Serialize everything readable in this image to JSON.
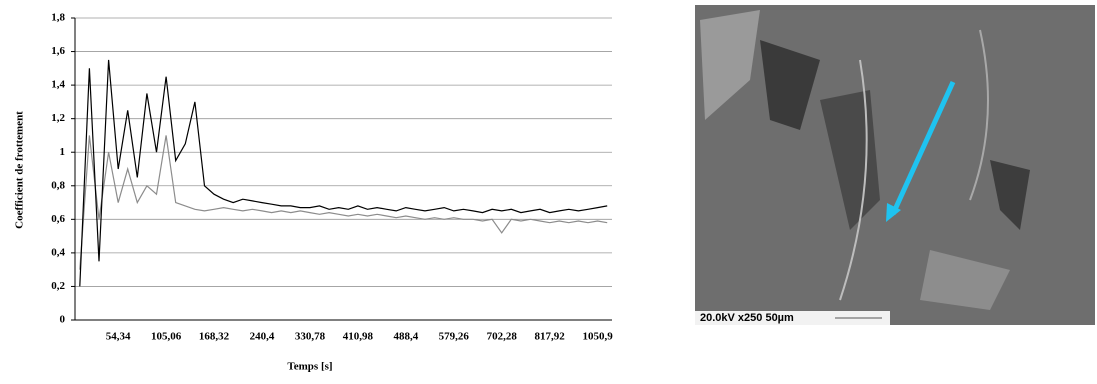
{
  "chart_data": {
    "type": "line",
    "y_label": "Coefficient de frottement",
    "x_label": "Temps [s]",
    "categories": [
      null,
      null,
      null,
      null,
      "54,34",
      null,
      null,
      null,
      null,
      "105,06",
      null,
      null,
      null,
      null,
      "168,32",
      null,
      null,
      null,
      null,
      "240,4",
      null,
      null,
      null,
      null,
      "330,78",
      null,
      null,
      null,
      null,
      "410,98",
      null,
      null,
      null,
      null,
      "488,4",
      null,
      null,
      null,
      null,
      "579,26",
      null,
      null,
      null,
      null,
      "702,28",
      null,
      null,
      null,
      null,
      "817,92",
      null,
      null,
      null,
      null,
      "1050,9",
      null
    ],
    "series": [
      {
        "color": "#000000",
        "values": [
          0.2,
          1.5,
          0.35,
          1.55,
          0.9,
          1.25,
          0.85,
          1.35,
          1.0,
          1.45,
          0.95,
          1.05,
          1.3,
          0.8,
          0.75,
          0.72,
          0.7,
          0.72,
          0.71,
          0.7,
          0.69,
          0.68,
          0.68,
          0.67,
          0.67,
          0.68,
          0.66,
          0.67,
          0.66,
          0.68,
          0.66,
          0.67,
          0.66,
          0.65,
          0.67,
          0.66,
          0.65,
          0.66,
          0.67,
          0.65,
          0.66,
          0.65,
          0.64,
          0.66,
          0.65,
          0.66,
          0.64,
          0.65,
          0.66,
          0.64,
          0.65,
          0.66,
          0.65,
          0.66,
          0.67,
          0.68
        ]
      },
      {
        "color": "#8c8c8c",
        "values": [
          0.3,
          1.1,
          0.6,
          1.0,
          0.7,
          0.9,
          0.7,
          0.8,
          0.75,
          1.1,
          0.7,
          0.68,
          0.66,
          0.65,
          0.66,
          0.67,
          0.66,
          0.65,
          0.66,
          0.65,
          0.64,
          0.65,
          0.64,
          0.65,
          0.64,
          0.63,
          0.64,
          0.63,
          0.62,
          0.63,
          0.62,
          0.63,
          0.62,
          0.61,
          0.62,
          0.61,
          0.6,
          0.61,
          0.6,
          0.61,
          0.6,
          0.6,
          0.59,
          0.6,
          0.52,
          0.6,
          0.59,
          0.6,
          0.59,
          0.58,
          0.59,
          0.58,
          0.59,
          0.58,
          0.59,
          0.58
        ]
      }
    ],
    "ylim": [
      0,
      1.8
    ],
    "yticks": [
      0,
      {
        "value": 0.2,
        "label": "0,2"
      },
      {
        "value": 0.4,
        "label": "0,4"
      },
      {
        "value": 0.6,
        "label": "0,6"
      },
      {
        "value": 0.8,
        "label": "0,8"
      },
      1,
      {
        "value": 1.2,
        "label": "1,2"
      },
      {
        "value": 1.4,
        "label": "1,4"
      },
      {
        "value": 1.6,
        "label": "1,6"
      },
      {
        "value": 1.8,
        "label": "1,8"
      }
    ],
    "grid": true
  },
  "image_caption": "20.0kV x250 50µm"
}
